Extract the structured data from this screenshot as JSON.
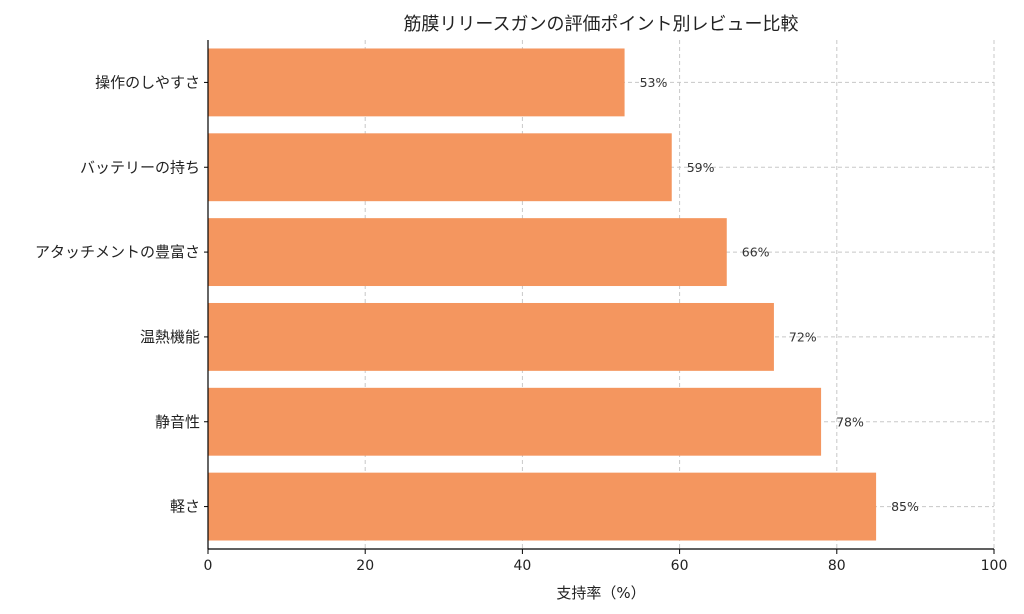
{
  "chart_data": {
    "type": "bar",
    "orientation": "horizontal",
    "title": "筋膜リリースガンの評価ポイント別レビュー比較",
    "xlabel": "支持率（%）",
    "ylabel": "",
    "categories": [
      "操作のしやすさ",
      "バッテリーの持ち",
      "アタッチメントの豊富さ",
      "温熱機能",
      "静音性",
      "軽さ"
    ],
    "values": [
      53,
      59,
      66,
      72,
      78,
      85
    ],
    "value_labels": [
      "53%",
      "59%",
      "66%",
      "72%",
      "78%",
      "85%"
    ],
    "xlim": [
      0,
      100
    ],
    "xticks": [
      0,
      20,
      40,
      60,
      80,
      100
    ],
    "xtick_labels": [
      "0",
      "20",
      "40",
      "60",
      "80",
      "100"
    ],
    "grid": true,
    "bar_color": "#F4965F",
    "grid_color": "#c8c8c8"
  }
}
